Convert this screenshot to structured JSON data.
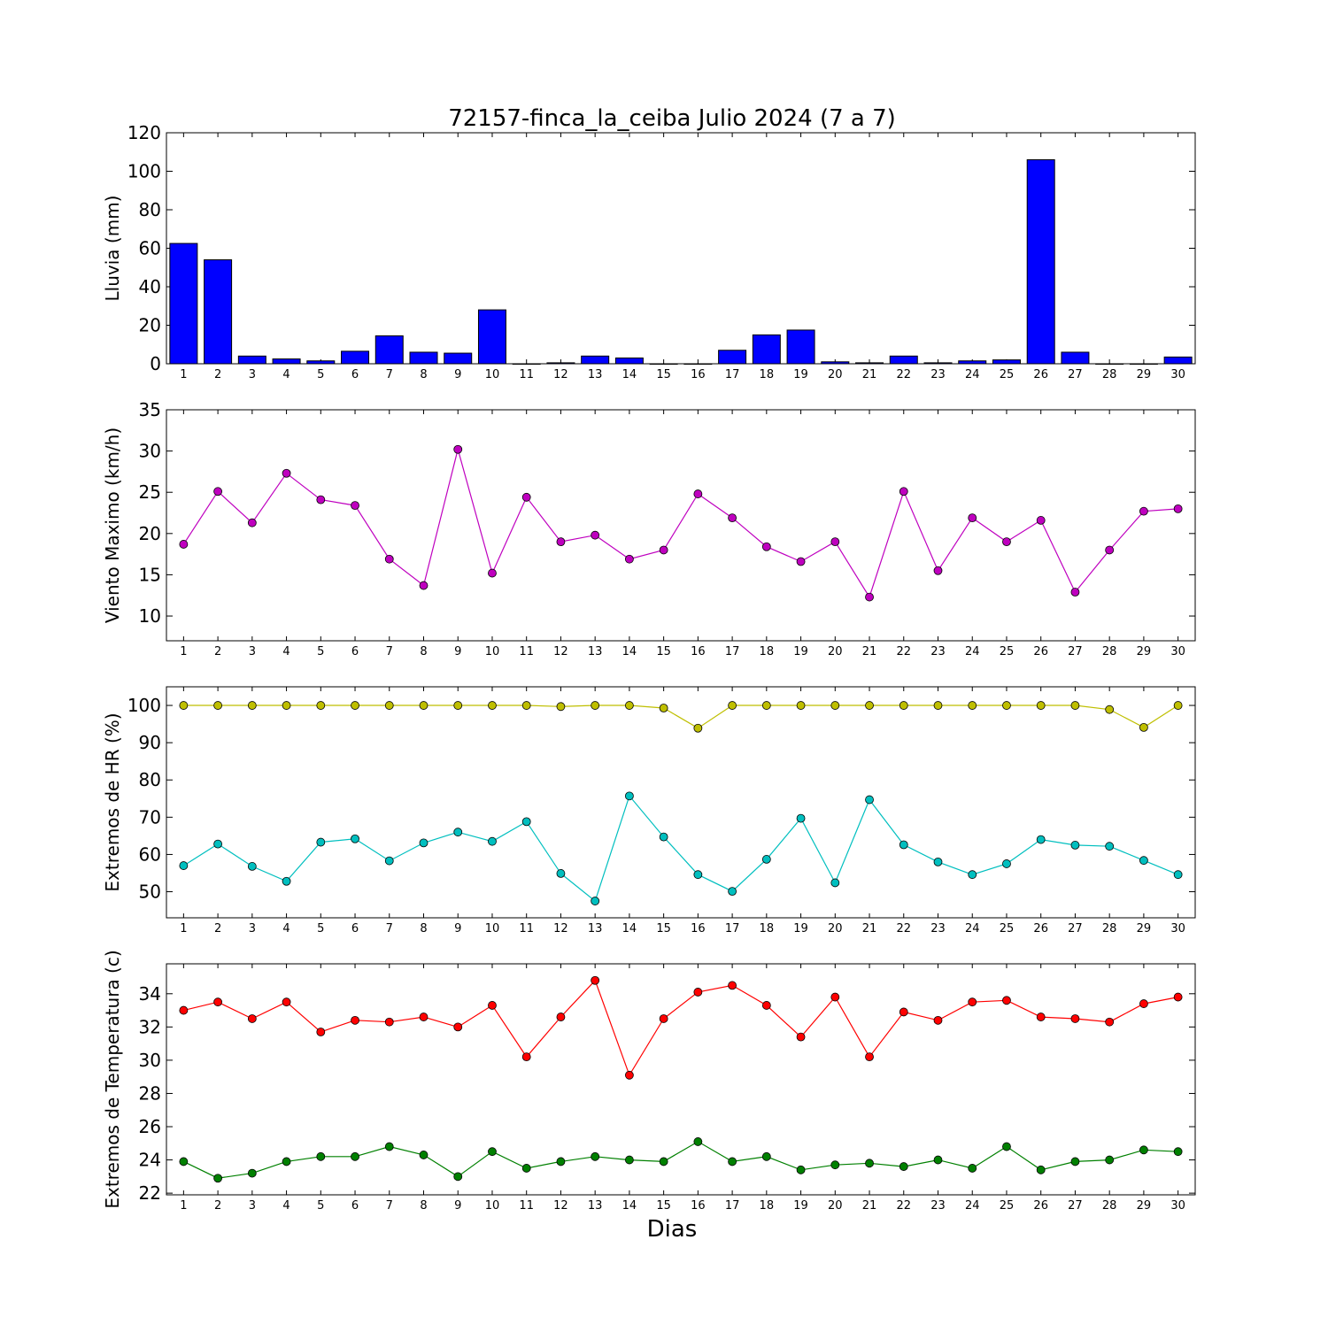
{
  "chart_data": [
    {
      "type": "bar",
      "title": "72157-finca_la_ceiba Julio 2024  (7 a 7)",
      "ylabel": "Lluvia (mm)",
      "xlabel": "",
      "ylim": [
        0,
        120
      ],
      "yticks": [
        0,
        20,
        40,
        60,
        80,
        100,
        120
      ],
      "categories": [
        "1",
        "2",
        "3",
        "4",
        "5",
        "6",
        "7",
        "8",
        "9",
        "10",
        "11",
        "12",
        "13",
        "14",
        "15",
        "16",
        "17",
        "18",
        "19",
        "20",
        "21",
        "22",
        "23",
        "24",
        "25",
        "26",
        "27",
        "28",
        "29",
        "30"
      ],
      "series": [
        {
          "color": "#0000ff",
          "values": [
            62.5,
            54,
            4,
            2.5,
            1.5,
            6.5,
            14.5,
            6,
            5.5,
            28,
            0,
            0.5,
            4,
            3,
            0,
            0,
            7,
            15,
            17.5,
            1,
            0.5,
            4,
            0.5,
            1.5,
            2,
            106,
            6,
            0,
            0,
            3.5
          ]
        }
      ]
    },
    {
      "type": "line",
      "title": "",
      "ylabel": "Viento Maximo (km/h)",
      "xlabel": "",
      "ylim": [
        7,
        35
      ],
      "yticks": [
        10,
        15,
        20,
        25,
        30,
        35
      ],
      "categories": [
        "1",
        "2",
        "3",
        "4",
        "5",
        "6",
        "7",
        "8",
        "9",
        "10",
        "11",
        "12",
        "13",
        "14",
        "15",
        "16",
        "17",
        "18",
        "19",
        "20",
        "21",
        "22",
        "23",
        "24",
        "25",
        "26",
        "27",
        "28",
        "29",
        "30"
      ],
      "series": [
        {
          "color": "#bf00bf",
          "values": [
            18.7,
            25.1,
            21.3,
            27.3,
            24.1,
            23.4,
            16.9,
            13.7,
            30.2,
            15.2,
            24.4,
            19.0,
            19.8,
            16.9,
            18.0,
            24.8,
            21.9,
            18.4,
            16.6,
            19.0,
            12.3,
            25.1,
            15.5,
            21.9,
            19.0,
            21.6,
            12.9,
            18.0,
            22.7,
            23.0
          ]
        }
      ]
    },
    {
      "type": "line",
      "title": "",
      "ylabel": "Extremos de HR (%)",
      "xlabel": "",
      "ylim": [
        43,
        105
      ],
      "yticks": [
        50,
        60,
        70,
        80,
        90,
        100
      ],
      "categories": [
        "1",
        "2",
        "3",
        "4",
        "5",
        "6",
        "7",
        "8",
        "9",
        "10",
        "11",
        "12",
        "13",
        "14",
        "15",
        "16",
        "17",
        "18",
        "19",
        "20",
        "21",
        "22",
        "23",
        "24",
        "25",
        "26",
        "27",
        "28",
        "29",
        "30"
      ],
      "series": [
        {
          "color": "#bfbf00",
          "values": [
            100,
            100,
            100,
            100,
            100,
            100,
            100,
            100,
            100,
            100,
            100,
            99.7,
            100,
            100,
            99.3,
            93.9,
            100,
            100,
            100,
            100,
            100,
            100,
            100,
            100,
            100,
            100,
            100,
            98.9,
            94.1,
            100
          ]
        },
        {
          "color": "#00bfbf",
          "values": [
            57.0,
            62.8,
            56.8,
            52.8,
            63.3,
            64.2,
            58.3,
            63.1,
            66.0,
            63.5,
            68.8,
            54.9,
            47.5,
            75.7,
            64.7,
            54.6,
            50.1,
            58.7,
            69.7,
            52.4,
            74.7,
            62.6,
            58.0,
            54.6,
            57.5,
            64.0,
            62.5,
            62.2,
            58.4,
            54.6
          ]
        }
      ]
    },
    {
      "type": "line",
      "title": "",
      "ylabel": "Extremos de Temperatura (c)",
      "xlabel": "Dias",
      "ylim": [
        21.9,
        35.8
      ],
      "yticks": [
        22,
        24,
        26,
        28,
        30,
        32,
        34
      ],
      "categories": [
        "1",
        "2",
        "3",
        "4",
        "5",
        "6",
        "7",
        "8",
        "9",
        "10",
        "11",
        "12",
        "13",
        "14",
        "15",
        "16",
        "17",
        "18",
        "19",
        "20",
        "21",
        "22",
        "23",
        "24",
        "25",
        "26",
        "27",
        "28",
        "29",
        "30"
      ],
      "series": [
        {
          "color": "#ff0000",
          "values": [
            33.0,
            33.5,
            32.5,
            33.5,
            31.7,
            32.4,
            32.3,
            32.6,
            32.0,
            33.3,
            30.2,
            32.6,
            34.8,
            29.1,
            32.5,
            34.1,
            34.5,
            33.3,
            31.4,
            33.8,
            30.2,
            32.9,
            32.4,
            33.5,
            33.6,
            32.6,
            32.5,
            32.3,
            33.4,
            33.8
          ]
        },
        {
          "color": "#008000",
          "values": [
            23.9,
            22.9,
            23.2,
            23.9,
            24.2,
            24.2,
            24.8,
            24.3,
            23.0,
            24.5,
            23.5,
            23.9,
            24.2,
            24.0,
            23.9,
            25.1,
            23.9,
            24.2,
            23.4,
            23.7,
            23.8,
            23.6,
            24.0,
            23.5,
            24.8,
            23.4,
            23.9,
            24.0,
            24.6,
            24.5
          ]
        }
      ]
    }
  ]
}
